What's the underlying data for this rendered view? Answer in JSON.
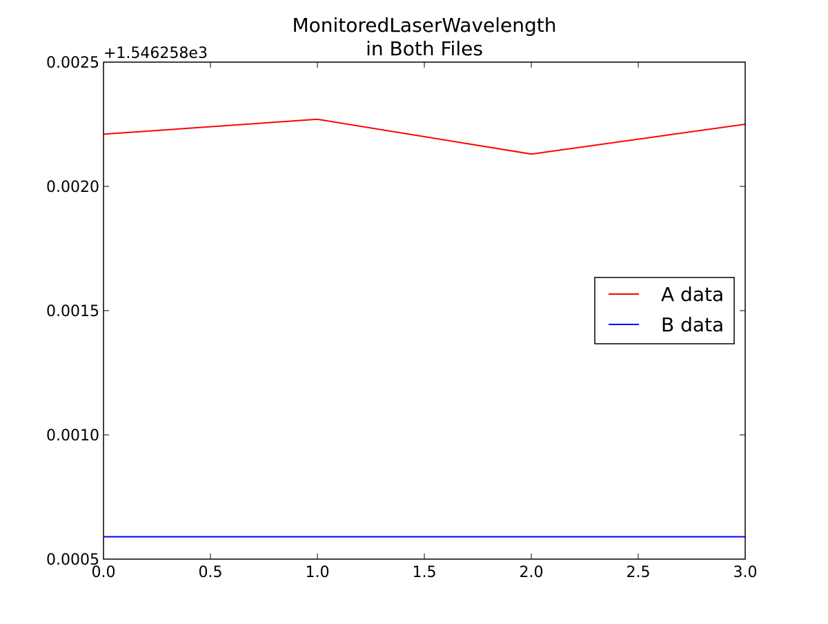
{
  "chart_data": {
    "type": "line",
    "title_lines": [
      "MonitoredLaserWavelength",
      "in Both Files"
    ],
    "xlabel": "",
    "ylabel": "",
    "y_offset_text": "+1.546258e3",
    "y_offset_value": 1546.258,
    "xlim": [
      0.0,
      3.0
    ],
    "ylim": [
      0.0005,
      0.0025
    ],
    "x_ticks": [
      0.0,
      0.5,
      1.0,
      1.5,
      2.0,
      2.5,
      3.0
    ],
    "x_tick_labels": [
      "0.0",
      "0.5",
      "1.0",
      "1.5",
      "2.0",
      "2.5",
      "3.0"
    ],
    "y_ticks": [
      0.0005,
      0.001,
      0.0015,
      0.002,
      0.0025
    ],
    "y_tick_labels": [
      "0.0005",
      "0.0010",
      "0.0015",
      "0.0020",
      "0.0025"
    ],
    "grid": false,
    "legend_position": "center-right",
    "series": [
      {
        "name": "A data",
        "color": "#ff0000",
        "x": [
          0,
          1,
          2,
          3
        ],
        "values": [
          0.00221,
          0.00227,
          0.00213,
          0.00225
        ]
      },
      {
        "name": "B data",
        "color": "#0000ff",
        "x": [
          0,
          1,
          2,
          3
        ],
        "values": [
          0.00059,
          0.00059,
          0.00059,
          0.00059
        ]
      }
    ]
  }
}
